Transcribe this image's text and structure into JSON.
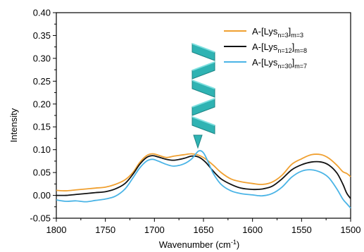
{
  "chart_data": {
    "type": "line",
    "xlabel": "Wavenumber (cm",
    "xlabel_sup": "-1",
    "xlabel_close": ")",
    "ylabel": "Intensity",
    "xlim": [
      1800,
      1500
    ],
    "ylim": [
      -0.05,
      0.4
    ],
    "x_reversed": true,
    "x_ticks": [
      "1800",
      "1750",
      "1700",
      "1650",
      "1600",
      "1550",
      "1500"
    ],
    "y_ticks": [
      "-0.05",
      "0.00",
      "0.05",
      "0.10",
      "0.15",
      "0.20",
      "0.25",
      "0.30",
      "0.35",
      "0.40"
    ],
    "grid": false,
    "legend_position": "top-right",
    "series": [
      {
        "label_main": "A-[Lys",
        "label_sub1": "n=3",
        "label_bracket": "]",
        "label_sub2": "m=3",
        "color": "#f0a030",
        "points": [
          [
            1800,
            0.011
          ],
          [
            1790,
            0.01
          ],
          [
            1780,
            0.012
          ],
          [
            1770,
            0.014
          ],
          [
            1760,
            0.016
          ],
          [
            1750,
            0.018
          ],
          [
            1740,
            0.024
          ],
          [
            1730,
            0.034
          ],
          [
            1722,
            0.05
          ],
          [
            1715,
            0.072
          ],
          [
            1708,
            0.087
          ],
          [
            1702,
            0.091
          ],
          [
            1696,
            0.088
          ],
          [
            1688,
            0.083
          ],
          [
            1680,
            0.086
          ],
          [
            1670,
            0.089
          ],
          [
            1662,
            0.091
          ],
          [
            1655,
            0.088
          ],
          [
            1648,
            0.08
          ],
          [
            1640,
            0.066
          ],
          [
            1632,
            0.05
          ],
          [
            1622,
            0.036
          ],
          [
            1612,
            0.03
          ],
          [
            1600,
            0.026
          ],
          [
            1590,
            0.024
          ],
          [
            1580,
            0.029
          ],
          [
            1570,
            0.044
          ],
          [
            1560,
            0.068
          ],
          [
            1550,
            0.08
          ],
          [
            1540,
            0.089
          ],
          [
            1530,
            0.089
          ],
          [
            1522,
            0.081
          ],
          [
            1514,
            0.066
          ],
          [
            1508,
            0.052
          ],
          [
            1504,
            0.048
          ],
          [
            1500,
            0.041
          ]
        ]
      },
      {
        "label_main": "A-[Lys",
        "label_sub1": "n=12",
        "label_bracket": "]",
        "label_sub2": "m=8",
        "color": "#111111",
        "points": [
          [
            1800,
            0.0
          ],
          [
            1790,
            0.0
          ],
          [
            1780,
            0.002
          ],
          [
            1770,
            0.004
          ],
          [
            1760,
            0.006
          ],
          [
            1750,
            0.008
          ],
          [
            1740,
            0.014
          ],
          [
            1730,
            0.026
          ],
          [
            1722,
            0.046
          ],
          [
            1715,
            0.068
          ],
          [
            1708,
            0.083
          ],
          [
            1702,
            0.087
          ],
          [
            1696,
            0.084
          ],
          [
            1688,
            0.079
          ],
          [
            1680,
            0.077
          ],
          [
            1670,
            0.081
          ],
          [
            1662,
            0.086
          ],
          [
            1655,
            0.084
          ],
          [
            1648,
            0.073
          ],
          [
            1640,
            0.053
          ],
          [
            1632,
            0.036
          ],
          [
            1622,
            0.024
          ],
          [
            1612,
            0.016
          ],
          [
            1600,
            0.013
          ],
          [
            1590,
            0.014
          ],
          [
            1580,
            0.02
          ],
          [
            1570,
            0.036
          ],
          [
            1560,
            0.056
          ],
          [
            1550,
            0.067
          ],
          [
            1540,
            0.073
          ],
          [
            1530,
            0.073
          ],
          [
            1522,
            0.066
          ],
          [
            1514,
            0.049
          ],
          [
            1508,
            0.025
          ],
          [
            1504,
            0.005
          ],
          [
            1500,
            -0.007
          ]
        ]
      },
      {
        "label_main": "A-[Lys",
        "label_sub1": "n=30",
        "label_bracket": "]",
        "label_sub2": "m=7",
        "color": "#4ab4e6",
        "points": [
          [
            1800,
            -0.01
          ],
          [
            1790,
            -0.013
          ],
          [
            1780,
            -0.012
          ],
          [
            1770,
            -0.014
          ],
          [
            1760,
            -0.011
          ],
          [
            1750,
            -0.008
          ],
          [
            1740,
            -0.002
          ],
          [
            1730,
            0.014
          ],
          [
            1722,
            0.038
          ],
          [
            1715,
            0.06
          ],
          [
            1708,
            0.075
          ],
          [
            1702,
            0.079
          ],
          [
            1696,
            0.075
          ],
          [
            1688,
            0.068
          ],
          [
            1680,
            0.064
          ],
          [
            1670,
            0.069
          ],
          [
            1662,
            0.08
          ],
          [
            1655,
            0.097
          ],
          [
            1650,
            0.093
          ],
          [
            1645,
            0.072
          ],
          [
            1640,
            0.048
          ],
          [
            1632,
            0.024
          ],
          [
            1622,
            0.01
          ],
          [
            1612,
            0.004
          ],
          [
            1600,
            0.001
          ],
          [
            1590,
            -0.001
          ],
          [
            1580,
            0.004
          ],
          [
            1570,
            0.018
          ],
          [
            1560,
            0.04
          ],
          [
            1550,
            0.053
          ],
          [
            1540,
            0.056
          ],
          [
            1530,
            0.05
          ],
          [
            1522,
            0.038
          ],
          [
            1514,
            0.014
          ],
          [
            1508,
            -0.008
          ],
          [
            1504,
            -0.018
          ],
          [
            1500,
            -0.028
          ]
        ]
      }
    ]
  },
  "decoration": {
    "helix_color": "#2fb3b3",
    "helix_edge_color": "#1d8585",
    "helix_icon": "alpha-helix-icon"
  }
}
